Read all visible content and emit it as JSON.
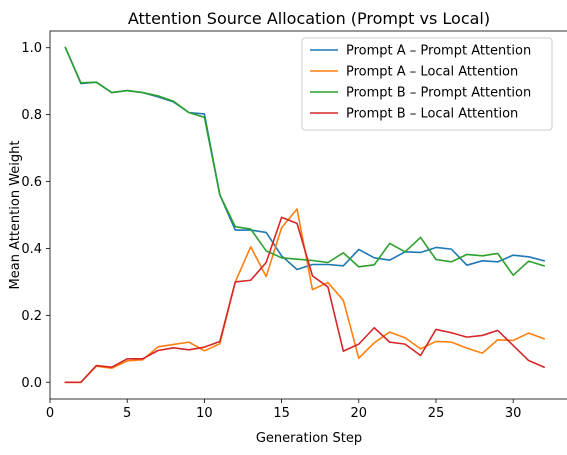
{
  "chart_data": {
    "type": "line",
    "title": "Attention Source Allocation (Prompt vs Local)",
    "xlabel": "Generation Step",
    "ylabel": "Mean Attention Weight",
    "xlim": [
      0,
      33.55
    ],
    "ylim": [
      -0.05,
      1.05
    ],
    "xticks": [
      0,
      5,
      10,
      15,
      20,
      25,
      30
    ],
    "yticks": [
      0.0,
      0.2,
      0.4,
      0.6,
      0.8,
      1.0
    ],
    "grid": false,
    "legend_position": "top-right",
    "x": [
      1,
      2,
      3,
      4,
      5,
      6,
      7,
      8,
      9,
      10,
      11,
      12,
      13,
      14,
      15,
      16,
      17,
      18,
      19,
      20,
      21,
      22,
      23,
      24,
      25,
      26,
      27,
      28,
      29,
      30,
      31,
      32
    ],
    "series": [
      {
        "name": "Prompt A – Prompt Attention",
        "color": "#1f77b4",
        "values": [
          1.0,
          0.893,
          0.897,
          0.866,
          0.872,
          0.866,
          0.853,
          0.838,
          0.806,
          0.802,
          0.56,
          0.455,
          0.455,
          0.448,
          0.378,
          0.337,
          0.352,
          0.352,
          0.348,
          0.397,
          0.372,
          0.365,
          0.39,
          0.388,
          0.403,
          0.398,
          0.35,
          0.363,
          0.36,
          0.38,
          0.375,
          0.363
        ]
      },
      {
        "name": "Prompt A – Local Attention",
        "color": "#ff7f0e",
        "values": [
          0.0,
          0.0,
          0.048,
          0.042,
          0.064,
          0.067,
          0.106,
          0.113,
          0.12,
          0.094,
          0.115,
          0.3,
          0.405,
          0.316,
          0.462,
          0.518,
          0.277,
          0.298,
          0.245,
          0.072,
          0.118,
          0.15,
          0.133,
          0.1,
          0.122,
          0.12,
          0.102,
          0.087,
          0.127,
          0.125,
          0.147,
          0.13
        ]
      },
      {
        "name": "Prompt B – Prompt Attention",
        "color": "#2ca02c",
        "values": [
          1.0,
          0.895,
          0.897,
          0.866,
          0.872,
          0.866,
          0.856,
          0.84,
          0.806,
          0.792,
          0.56,
          0.465,
          0.458,
          0.393,
          0.372,
          0.368,
          0.364,
          0.358,
          0.387,
          0.345,
          0.351,
          0.415,
          0.39,
          0.433,
          0.367,
          0.36,
          0.382,
          0.378,
          0.385,
          0.32,
          0.362,
          0.348
        ]
      },
      {
        "name": "Prompt B – Local Attention",
        "color": "#d62728",
        "values": [
          0.0,
          0.0,
          0.05,
          0.045,
          0.07,
          0.07,
          0.095,
          0.103,
          0.097,
          0.105,
          0.122,
          0.3,
          0.305,
          0.358,
          0.493,
          0.475,
          0.318,
          0.285,
          0.093,
          0.114,
          0.163,
          0.12,
          0.114,
          0.08,
          0.158,
          0.148,
          0.135,
          0.14,
          0.155,
          0.11,
          0.065,
          0.045
        ]
      }
    ]
  }
}
